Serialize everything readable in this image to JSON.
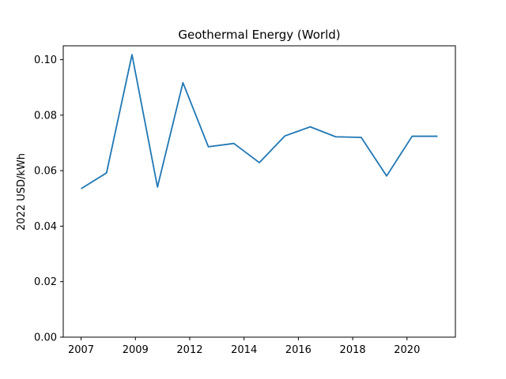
{
  "chart_data": {
    "type": "line",
    "title": "Geothermal Energy (World)",
    "xlabel": "",
    "ylabel": "2022 USD/kWh",
    "x_ticks": [
      "2007",
      "2009",
      "2012",
      "2014",
      "2016",
      "2018",
      "2020"
    ],
    "y_ticks": [
      "0.00",
      "0.02",
      "0.04",
      "0.06",
      "0.08",
      "0.10"
    ],
    "ylim": [
      0,
      0.105
    ],
    "grid": false,
    "series": [
      {
        "name": "",
        "color": "#1f77b4",
        "x": [
          2007,
          2008,
          2009,
          2010,
          2011,
          2012,
          2013,
          2014,
          2015,
          2016,
          2017,
          2018,
          2019,
          2020,
          2021
        ],
        "values": [
          0.0535,
          0.0592,
          0.1018,
          0.0541,
          0.0917,
          0.0686,
          0.0698,
          0.0629,
          0.0725,
          0.0758,
          0.0722,
          0.072,
          0.0581,
          0.0724,
          0.0724
        ]
      }
    ]
  }
}
